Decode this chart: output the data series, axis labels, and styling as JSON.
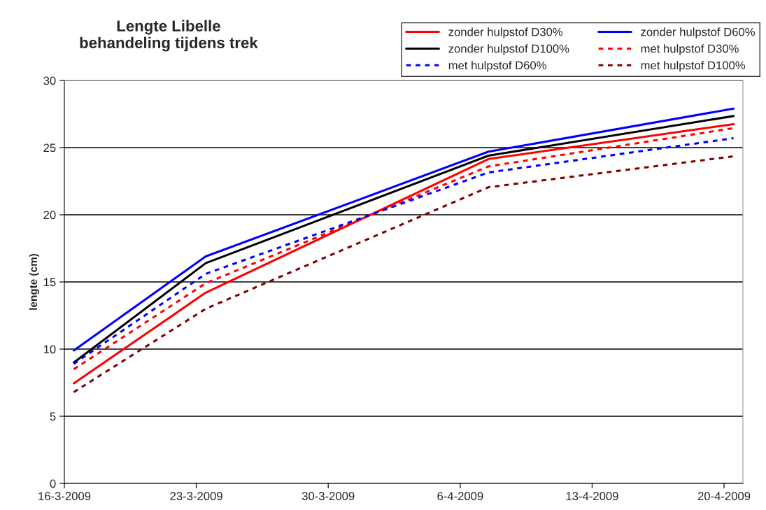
{
  "chart_data": {
    "type": "line",
    "title": "Lengte Libelle\nbehandeling tijdens trek",
    "ylabel": "lengte (cm)",
    "x": [
      "2009-03-16T12:00",
      "2009-03-23T12:00",
      "2009-04-07T12:00",
      "2009-04-20T12:00"
    ],
    "series": [
      {
        "name": "zonder hulpstof D30%",
        "color": "#ff0000",
        "line_style": "solid",
        "values": [
          7.45,
          14.2,
          24.15,
          26.75
        ]
      },
      {
        "name": "zonder hulpstof D60%",
        "color": "#0000ff",
        "line_style": "solid",
        "values": [
          9.9,
          16.9,
          24.7,
          27.9
        ]
      },
      {
        "name": "zonder hulpstof D100%",
        "color": "#000000",
        "line_style": "solid",
        "values": [
          9.0,
          16.4,
          24.4,
          27.35
        ]
      },
      {
        "name": "met hulpstof D30%",
        "color": "#ff0000",
        "line_style": "dashed",
        "values": [
          8.5,
          14.9,
          23.6,
          26.45
        ]
      },
      {
        "name": "met hulpstof D60%",
        "color": "#0000ff",
        "line_style": "dashed",
        "values": [
          8.9,
          15.6,
          23.15,
          25.7
        ]
      },
      {
        "name": "met hulpstof D100%",
        "color": "#800000",
        "line_style": "dashed",
        "values": [
          6.8,
          13.0,
          22.05,
          24.35
        ]
      }
    ],
    "xlim": [
      "2009-03-16",
      "2009-04-21"
    ],
    "xticks": [
      {
        "value": "2009-03-16",
        "label": "16-3-2009"
      },
      {
        "value": "2009-03-23",
        "label": "23-3-2009"
      },
      {
        "value": "2009-03-30",
        "label": "30-3-2009"
      },
      {
        "value": "2009-04-06",
        "label": "6-4-2009"
      },
      {
        "value": "2009-04-13",
        "label": "13-4-2009"
      },
      {
        "value": "2009-04-20",
        "label": "20-4-2009"
      }
    ],
    "ylim": [
      0,
      30
    ],
    "yticks": [
      0,
      5,
      10,
      15,
      20,
      25,
      30
    ],
    "grid": "y",
    "legend": "top right",
    "marker": "none"
  }
}
